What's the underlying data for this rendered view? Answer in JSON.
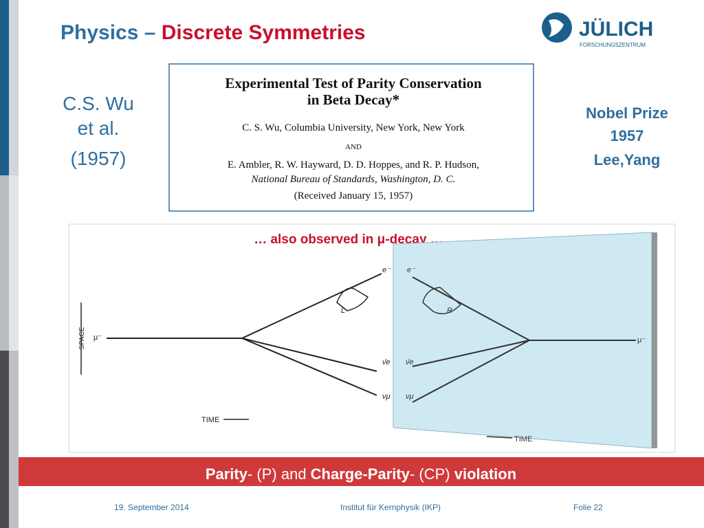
{
  "header": {
    "title_a": "Physics – ",
    "title_b": "Discrete Symmetries",
    "logo_name": "JÜLICH",
    "logo_sub": "FORSCHUNGSZENTRUM"
  },
  "left_note": [
    "C.S. Wu",
    "et al.",
    "(1957)"
  ],
  "paper": {
    "title": [
      "Experimental Test of Parity Conservation",
      "in Beta Decay*"
    ],
    "lines": [
      "C. S. Wu, Columbia University, New York, New York",
      "AND",
      "E. Ambler, R. W. Hayward, D. D. Hoppes, and R. P. Hudson,",
      "National Bureau of Standards, Washington, D. C.",
      "(Received January 15, 1957)"
    ]
  },
  "right_note": [
    "Nobel Prize",
    "1957",
    "Lee,Yang"
  ],
  "figure": {
    "caption": "… also observed in μ-decay …",
    "left_labels": {
      "space": "SPACE",
      "time": "TIME",
      "muon": "μ⁻",
      "electron": "e⁻",
      "hand": "L",
      "antinu_e": "ν̄e",
      "nu_mu": "νμ"
    },
    "mirror_labels": {
      "electron": "e⁻",
      "hand": "R",
      "antinu_e": "ν̄e",
      "nu_mu": "νμ",
      "muon": "μ⁻",
      "time": "TIME"
    }
  },
  "banner": [
    "Parity",
    "- (P) and ",
    "Charge-Parity",
    "- (CP) ",
    "violation"
  ],
  "footer": {
    "date": "19. September 2014",
    "institute": "Institut für Kernphysik (IKP)",
    "slide": "Folie 22"
  }
}
